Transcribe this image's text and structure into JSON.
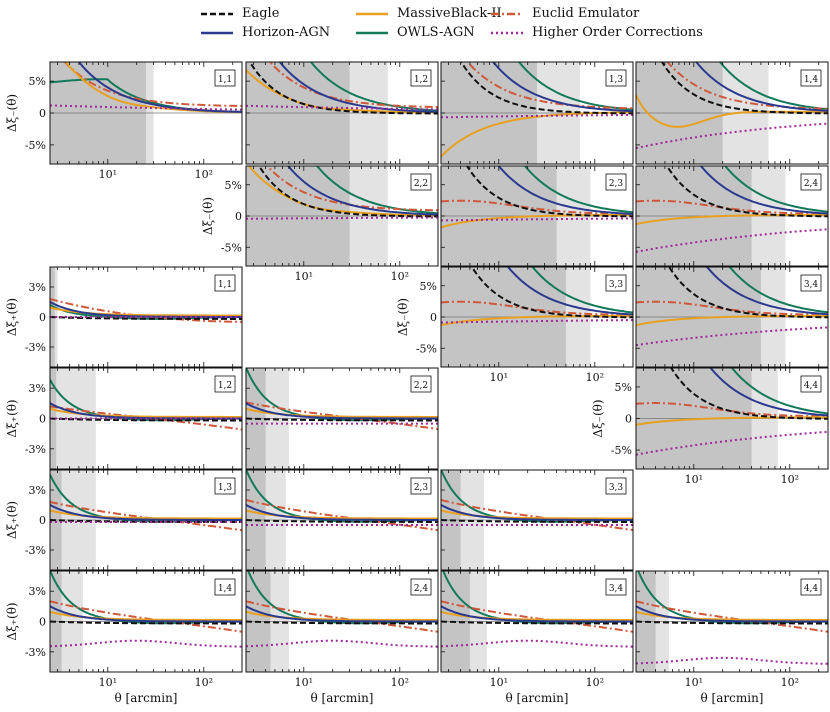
{
  "legend": [
    {
      "label": "Eagle",
      "color": "#111111",
      "dash": "6,3"
    },
    {
      "label": "Horizon-AGN",
      "color": "#2b3a8f",
      "dash": ""
    },
    {
      "label": "MassiveBlack-II",
      "color": "#e8a020",
      "dash": ""
    },
    {
      "label": "OWLS-AGN",
      "color": "#127a5a",
      "dash": ""
    },
    {
      "label": "Euclid Emulator",
      "color": "#d0583a",
      "dash": "8,3,2,3"
    },
    {
      "label": "Higher Order Corrections",
      "color": "#a0289a",
      "dash": "2,3"
    }
  ],
  "chart_data": {
    "type": "line",
    "xlabel": "θ [arcmin]",
    "xscale": "log",
    "xlim": [
      2.5,
      250
    ],
    "x_ticks": [
      "10¹",
      "10²"
    ],
    "ylabel_minus": "Δξ₋(θ)",
    "ylabel_plus": "Δξ₊(θ)",
    "yticks_minus": [
      "5%",
      "0",
      "-5%"
    ],
    "yticks_plus": [
      "3%",
      "0",
      "-3%"
    ],
    "ylim_minus": [
      -8,
      8
    ],
    "ylim_plus": [
      -5,
      5
    ],
    "panels": [
      {
        "id": "m-1,1",
        "kind": "xi_minus",
        "label": "1,1",
        "dark_end": 25,
        "light_end": 30,
        "eagle_A": 0,
        "hagn_A": 40,
        "mb_A": 38,
        "owls": [
          4.8,
          5.2,
          3.5,
          1.0,
          0.3
        ],
        "emu_A": 25,
        "emu_c": 1.0,
        "hoc": 1.4,
        "hoc_k": 0.4,
        "show_x": true
      },
      {
        "id": "m-1,2",
        "kind": "xi_minus",
        "label": "1,2",
        "dark_end": 30,
        "light_end": 75,
        "eagle_A": 30,
        "hagn_A": 45,
        "mb_A": 22,
        "owls_A": 95,
        "emu_A": 32,
        "emu_c": 0.8,
        "hoc": 1.3,
        "hoc_k": 0.35,
        "show_x": false
      },
      {
        "id": "m-1,3",
        "kind": "xi_minus",
        "label": "1,3",
        "dark_end": 25,
        "light_end": 70,
        "eagle_A": 50,
        "hagn_A": 70,
        "mb_neg": -7,
        "owls_A": 130,
        "emu_A": 35,
        "emu_c": 0.6,
        "hoc": -0.8,
        "hoc_k": 0.4,
        "show_x": false
      },
      {
        "id": "m-1,4",
        "kind": "xi_minus",
        "label": "1,4",
        "dark_end": 20,
        "light_end": 60,
        "eagle_A": 60,
        "hagn_A": 85,
        "mb_dip": -2.5,
        "owls_A": 150,
        "emu_A": 40,
        "emu_c": 0.5,
        "hoc": -7,
        "hoc_k": 0.6,
        "show_x": false
      },
      {
        "id": "m-2,2",
        "kind": "xi_minus",
        "label": "2,2",
        "dark_end": 30,
        "light_end": 75,
        "eagle_A": 40,
        "hagn_A": 55,
        "mb_A": 28,
        "owls_A": 110,
        "emu_A": 30,
        "emu_c": 0.8,
        "hoc": -0.5,
        "hoc_k": 0.3,
        "show_x": true
      },
      {
        "id": "m-2,3",
        "kind": "xi_minus",
        "label": "2,3",
        "dark_end": 40,
        "light_end": 90,
        "eagle_A": 60,
        "hagn_A": 80,
        "mb_neg": -2,
        "owls_A": 150,
        "emu_A": 3,
        "emu_c": 0.7,
        "hoc": -0.8,
        "hoc_k": 0.3,
        "show_x": false
      },
      {
        "id": "m-2,4",
        "kind": "xi_minus",
        "label": "2,4",
        "dark_end": 40,
        "light_end": 90,
        "eagle_A": 70,
        "hagn_A": 95,
        "mb_neg": -1.5,
        "owls_A": 170,
        "emu_A": 3,
        "emu_c": 0.7,
        "hoc": -7,
        "hoc_k": 0.5,
        "show_x": false
      },
      {
        "id": "m-3,3",
        "kind": "xi_minus",
        "label": "3,3",
        "dark_end": 50,
        "light_end": 90,
        "eagle_A": 70,
        "hagn_A": 100,
        "mb_neg": -1.5,
        "owls_A": 180,
        "emu_A": 3,
        "emu_c": 0.7,
        "hoc": -1.0,
        "hoc_k": 0.3,
        "show_x": true
      },
      {
        "id": "m-3,4",
        "kind": "xi_minus",
        "label": "3,4",
        "dark_end": 50,
        "light_end": 90,
        "eagle_A": 75,
        "hagn_A": 110,
        "mb_neg": -1.5,
        "owls_A": 190,
        "emu_A": 3,
        "emu_c": 0.7,
        "hoc": -5.5,
        "hoc_k": 0.5,
        "show_x": false
      },
      {
        "id": "m-4,4",
        "kind": "xi_minus",
        "label": "4,4",
        "dark_end": 40,
        "light_end": 75,
        "eagle_A": 80,
        "hagn_A": 120,
        "mb_neg": -1.2,
        "owls_A": 200,
        "emu_A": 3,
        "emu_c": 0.7,
        "hoc": -7,
        "hoc_k": 0.5,
        "show_x": true
      },
      {
        "id": "p-1,1",
        "kind": "xi_plus",
        "label": "1,1",
        "dark_end": 2.8,
        "light_end": 3.0,
        "owls_A": 1.2,
        "emu_A": 1.2,
        "hoc": 0.0,
        "show_x": false
      },
      {
        "id": "p-1,2",
        "kind": "xi_plus",
        "label": "1,2",
        "dark_end": 2.9,
        "light_end": 7.5,
        "owls_A": 3.8,
        "emu_A": 1.2,
        "hoc": 0.0,
        "show_x": false
      },
      {
        "id": "p-2,2",
        "kind": "xi_plus",
        "label": "2,2",
        "dark_end": 4.0,
        "light_end": 7.0,
        "owls_A": 5.0,
        "emu_A": 1.6,
        "hoc": -0.5,
        "show_x": false
      },
      {
        "id": "p-1,3",
        "kind": "xi_plus",
        "label": "1,3",
        "dark_end": 3.3,
        "light_end": 7.5,
        "owls_A": 4.5,
        "emu_A": 1.8,
        "hoc": -0.2,
        "show_x": false
      },
      {
        "id": "p-2,3",
        "kind": "xi_plus",
        "label": "2,3",
        "dark_end": 4.0,
        "light_end": 6.5,
        "owls_A": 5.0,
        "emu_A": 2.0,
        "hoc": -0.5,
        "show_x": false
      },
      {
        "id": "p-3,3",
        "kind": "xi_plus",
        "label": "3,3",
        "dark_end": 4.0,
        "light_end": 7.0,
        "owls_A": 5.0,
        "emu_A": 2.0,
        "hoc": -0.5,
        "show_x": false
      },
      {
        "id": "p-1,4",
        "kind": "xi_plus",
        "label": "1,4",
        "dark_end": 3.3,
        "light_end": 5.5,
        "owls_A": 5.0,
        "emu_A": 2.0,
        "hoc": -2.5,
        "show_x": true
      },
      {
        "id": "p-2,4",
        "kind": "xi_plus",
        "label": "2,4",
        "dark_end": 4.5,
        "light_end": 7.0,
        "owls_A": 5.5,
        "emu_A": 2.0,
        "hoc": -2.5,
        "show_x": true
      },
      {
        "id": "p-3,4",
        "kind": "xi_plus",
        "label": "3,4",
        "dark_end": 5.0,
        "light_end": 7.5,
        "owls_A": 5.5,
        "emu_A": 2.0,
        "hoc": -2.5,
        "show_x": true
      },
      {
        "id": "p-4,4",
        "kind": "xi_plus",
        "label": "4,4",
        "dark_end": 4.0,
        "light_end": 5.5,
        "owls_A": 5.5,
        "emu_A": 2.0,
        "hoc": -4.2,
        "show_x": true
      }
    ]
  }
}
